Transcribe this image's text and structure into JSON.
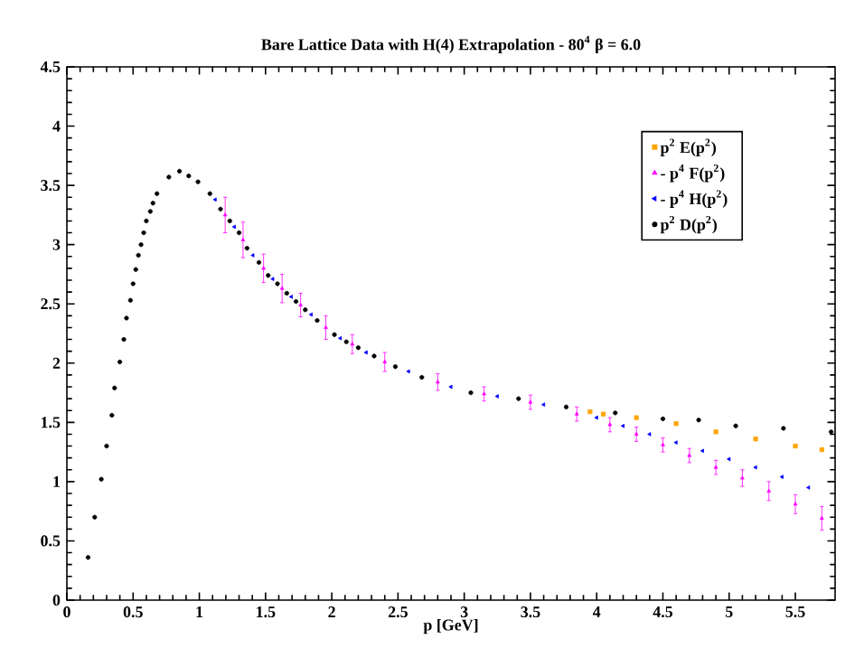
{
  "chart_data": {
    "type": "scatter",
    "title": "Bare Lattice Data with H(4) Extrapolation - 80$^{4}$  β = 6.0",
    "xlabel": "p [GeV]",
    "xlim": [
      0,
      5.8
    ],
    "ylim": [
      0,
      4.5
    ],
    "xticks": [
      0,
      0.5,
      1,
      1.5,
      2,
      2.5,
      3,
      3.5,
      4,
      4.5,
      5,
      5.5
    ],
    "yticks": [
      0,
      0.5,
      1,
      1.5,
      2,
      2.5,
      3,
      3.5,
      4,
      4.5
    ],
    "legend": "top right",
    "grid": false,
    "series": [
      {
        "name": "p$^{2}$ E(p$^{2}$)",
        "color": "#ffa500",
        "marker": "square",
        "x": [
          3.95,
          4.05,
          4.3,
          4.6,
          4.9,
          5.2,
          5.5,
          5.7
        ],
        "values": [
          1.59,
          1.57,
          1.54,
          1.49,
          1.42,
          1.36,
          1.3,
          1.27
        ]
      },
      {
        "name": "- p$^{4}$ F(p$^{2}$)",
        "color": "#ff00ff",
        "marker": "triangle",
        "x": [
          1.195,
          1.33,
          1.485,
          1.625,
          1.765,
          1.955,
          2.155,
          2.4,
          2.8,
          3.15,
          3.5,
          3.85,
          4.1,
          4.3,
          4.5,
          4.7,
          4.9,
          5.1,
          5.3,
          5.5,
          5.7
        ],
        "values": [
          3.25,
          3.04,
          2.8,
          2.63,
          2.49,
          2.3,
          2.16,
          2.01,
          1.84,
          1.74,
          1.67,
          1.57,
          1.48,
          1.4,
          1.31,
          1.22,
          1.12,
          1.03,
          0.92,
          0.81,
          0.69
        ],
        "errors": [
          0.15,
          0.15,
          0.12,
          0.12,
          0.1,
          0.1,
          0.08,
          0.08,
          0.07,
          0.06,
          0.06,
          0.06,
          0.06,
          0.06,
          0.06,
          0.06,
          0.06,
          0.07,
          0.08,
          0.08,
          0.1
        ]
      },
      {
        "name": "- p$^{4}$ H(p$^{2}$)",
        "color": "#0000ff",
        "marker": "triangle",
        "x": [
          1.12,
          1.265,
          1.405,
          1.555,
          1.695,
          1.845,
          2.065,
          2.26,
          2.58,
          2.9,
          3.25,
          3.6,
          4.0,
          4.2,
          4.4,
          4.6,
          4.8,
          5.0,
          5.2,
          5.4,
          5.6
        ],
        "values": [
          3.38,
          3.15,
          2.91,
          2.71,
          2.56,
          2.41,
          2.21,
          2.09,
          1.93,
          1.8,
          1.72,
          1.65,
          1.54,
          1.47,
          1.4,
          1.33,
          1.26,
          1.19,
          1.12,
          1.04,
          0.95
        ]
      },
      {
        "name": "p$^{2}$ D(p$^{2}$)",
        "color": "#000000",
        "marker": "circle",
        "x": [
          0.16,
          0.21,
          0.26,
          0.3,
          0.34,
          0.36,
          0.4,
          0.43,
          0.45,
          0.48,
          0.5,
          0.52,
          0.54,
          0.56,
          0.58,
          0.6,
          0.63,
          0.65,
          0.68,
          0.77,
          0.85,
          0.92,
          0.99,
          1.08,
          1.16,
          1.23,
          1.3,
          1.36,
          1.45,
          1.52,
          1.59,
          1.66,
          1.73,
          1.8,
          1.89,
          2.02,
          2.11,
          2.2,
          2.32,
          2.48,
          2.68,
          3.05,
          3.41,
          3.77,
          4.14,
          4.5,
          4.77,
          5.05,
          5.41,
          5.77
        ],
        "values": [
          0.36,
          0.7,
          1.02,
          1.3,
          1.56,
          1.79,
          2.01,
          2.2,
          2.38,
          2.53,
          2.67,
          2.79,
          2.91,
          3.0,
          3.1,
          3.2,
          3.28,
          3.35,
          3.43,
          3.57,
          3.62,
          3.58,
          3.53,
          3.43,
          3.3,
          3.2,
          3.1,
          2.97,
          2.85,
          2.74,
          2.67,
          2.59,
          2.52,
          2.45,
          2.36,
          2.24,
          2.18,
          2.13,
          2.06,
          1.97,
          1.88,
          1.75,
          1.7,
          1.63,
          1.58,
          1.53,
          1.52,
          1.47,
          1.45,
          1.42
        ]
      }
    ]
  }
}
